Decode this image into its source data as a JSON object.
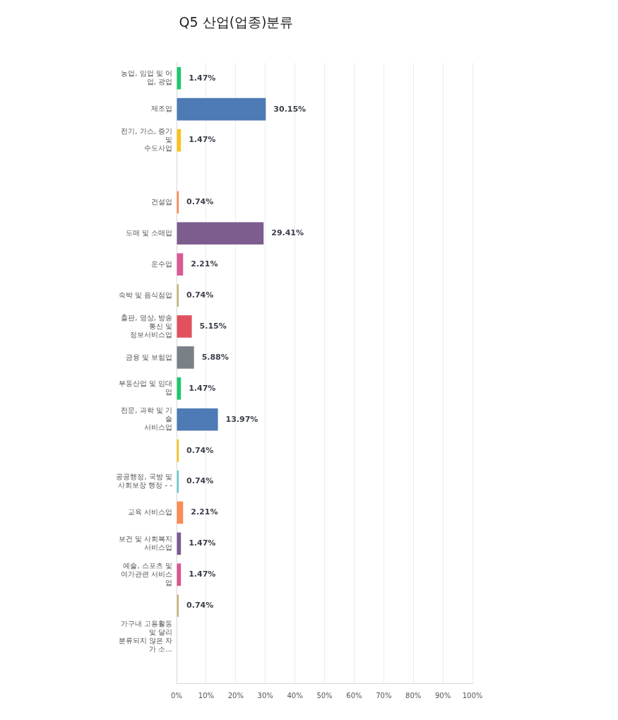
{
  "chart_data": {
    "type": "bar",
    "orientation": "horizontal",
    "title": "Q5 산업(업종)분류",
    "categories": [
      "농업, 임업 및 어\n업, 광업",
      "제조업",
      "전기, 가스, 증기\n및\n수도사업",
      null,
      "건설업",
      "도매 및 소매업",
      "운수업",
      "숙박 및 음식점업",
      "출판, 영상, 방송\n통신 및\n정보서비스업",
      "금융 및 보험업",
      "부동산업 및 임대\n업",
      "전문, 과학 및 기\n술\n서비스업",
      null,
      "공공행정, 국방 및\n사회보장 행정 - -",
      "교육 서비스업",
      "보건 및 사회복지\n서비스업",
      "예술, 스포츠 및\n여가관련 서비스\n업",
      null,
      "가구내 고용활동\n및 달리\n분류되지 않은 자\n가 소...",
      null
    ],
    "values": [
      1.47,
      30.15,
      1.47,
      null,
      0.74,
      29.41,
      2.21,
      0.74,
      5.15,
      5.88,
      1.47,
      13.97,
      0.74,
      0.74,
      2.21,
      1.47,
      1.47,
      0.74,
      null,
      null
    ],
    "value_labels": [
      "1.47%",
      "30.15%",
      "1.47%",
      null,
      "0.74%",
      "29.41%",
      "2.21%",
      "0.74%",
      "5.15%",
      "5.88%",
      "1.47%",
      "13.97%",
      "0.74%",
      "0.74%",
      "2.21%",
      "1.47%",
      "1.47%",
      "0.74%",
      null,
      null
    ],
    "colors": [
      "#1ec66e",
      "#4e7ab5",
      "#f7c21b",
      "#f98a5a",
      "#f98a5a",
      "#7d5c8e",
      "#d95b94",
      "#c5b57a",
      "#e0505e",
      "#7a8088",
      "#1ec66e",
      "#4e7ab5",
      "#f7c21b",
      "#6cc9d3",
      "#fb8c55",
      "#7b5a91",
      "#d9568f",
      "#c4b47c",
      "#1ec66e",
      "#4e7ab5"
    ],
    "xlim": [
      0,
      100
    ],
    "xticks": [
      {
        "value": 0,
        "label": "0%"
      },
      {
        "value": 10,
        "label": "10%"
      },
      {
        "value": 20,
        "label": "20%"
      },
      {
        "value": 30,
        "label": "30%"
      },
      {
        "value": 40,
        "label": "40%"
      },
      {
        "value": 50,
        "label": "50%"
      },
      {
        "value": 60,
        "label": "60%"
      },
      {
        "value": 70,
        "label": "70%"
      },
      {
        "value": 80,
        "label": "80%"
      },
      {
        "value": 90,
        "label": "90%"
      },
      {
        "value": 100,
        "label": "100%"
      }
    ],
    "grid": "x"
  }
}
